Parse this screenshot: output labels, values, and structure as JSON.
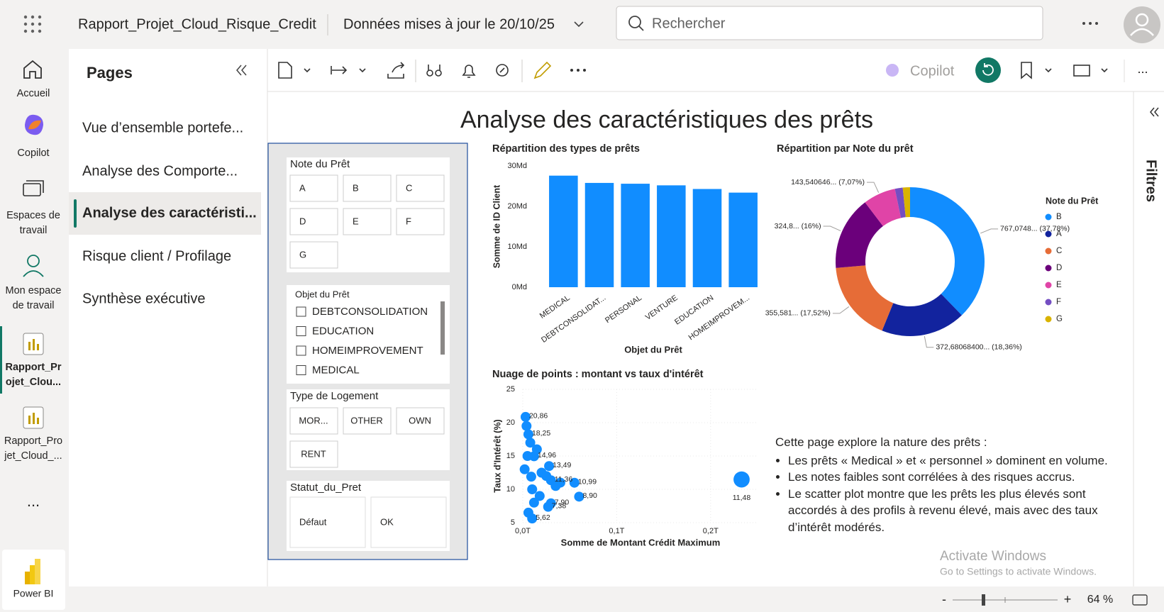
{
  "topbar": {
    "report_name": "Rapport_Projet_Cloud_Risque_Credit",
    "updated": "Données mises à jour le 20/10/25",
    "search": "Rechercher"
  },
  "nav": {
    "items": [
      [
        "Accueil"
      ],
      [
        "Copilot"
      ],
      [
        "Espaces de",
        "travail"
      ],
      [
        "Mon espace",
        "de travail"
      ],
      [
        "Rapport_Pr",
        "ojet_Clou..."
      ],
      [
        "Rapport_Pro",
        "jet_Cloud_..."
      ]
    ],
    "more": "...",
    "app": "Power BI"
  },
  "pages": {
    "title": "Pages",
    "items": [
      "Vue d’ensemble portefe...",
      "Analyse des Comporte...",
      "Analyse des caractéristi...",
      "Risque client / Profilage",
      "Synthèse exécutive"
    ],
    "active": 2
  },
  "toolbar": {
    "copilot": "Copilot",
    "more": "..."
  },
  "filters": "Filtres",
  "report": {
    "title": "Analyse des caractéristiques des prêts",
    "slicers": [
      {
        "title": "Note du Prêt",
        "options": [
          "A",
          "B",
          "C",
          "D",
          "E",
          "F",
          "G"
        ]
      },
      {
        "title": "Objet du Prêt",
        "options": [
          "DEBTCONSOLIDATION",
          "EDUCATION",
          "HOMEIMPROVEMENT",
          "MEDICAL"
        ]
      },
      {
        "title": "Type de Logement",
        "options": [
          "MOR...",
          "OTHER",
          "OWN",
          "RENT"
        ]
      },
      {
        "title": "Statut_du_Pret",
        "options": [
          "Défaut",
          "OK"
        ]
      }
    ],
    "bar_chart": {
      "type": "bar",
      "title": "Répartition des types de prêts",
      "y_label": "Somme de ID Client",
      "x_label": "Objet du Prêt",
      "categories": [
        "MEDICAL",
        "DEBTCONSOLIDAT...",
        "PERSONAL",
        "VENTURE",
        "EDUCATION",
        "HOMEIMPROVEM..."
      ],
      "values": [
        27.6,
        25.8,
        25.6,
        25.2,
        24.3,
        23.4
      ],
      "color": "#118dff",
      "ylim": [
        0,
        30
      ],
      "yticks": [
        {
          "value": 0,
          "label": "0Md"
        },
        {
          "value": 10,
          "label": "10Md"
        },
        {
          "value": 20,
          "label": "20Md"
        },
        {
          "value": 30,
          "label": "30Md"
        }
      ]
    },
    "donut": {
      "type": "pie",
      "title": "Répartition par Note du prêt",
      "legend_title": "Note du Prêt",
      "categories": [
        "B",
        "A",
        "C",
        "D",
        "E",
        "F",
        "G"
      ],
      "values": [
        37.78,
        18.36,
        17.52,
        16,
        7.07,
        1.7,
        1.57
      ],
      "value_labels": [
        "767,0748... (37,78%)",
        "372,68068400... (18,36%)",
        "355,581... (17,52%)",
        "324,8... (16%)",
        "143,540646... (7,07%)",
        null,
        null
      ],
      "colors": [
        "#118dff",
        "#12239e",
        "#e66c37",
        "#6b007b",
        "#e044a7",
        "#744ec2",
        "#d9b300"
      ]
    },
    "scatter": {
      "type": "scatter",
      "title": "Nuage de points : montant vs taux d'intérêt",
      "x_label": "Somme de Montant Crédit Maximum",
      "y_label": "Taux d'Intérêt (%)",
      "color": "#118dff",
      "grid": true,
      "x": [
        0.003,
        0.006,
        0.012,
        0.028,
        0.03,
        0.06,
        0.055,
        0.03,
        0.01,
        0.027,
        0.233,
        0.004,
        0.008,
        0.015,
        0.02,
        0.005,
        0.01,
        0.018,
        0.025,
        0.04,
        0.006,
        0.012,
        0.035,
        0.002,
        0.009
      ],
      "y": [
        20.86,
        18.25,
        14.96,
        13.49,
        11.36,
        8.9,
        10.99,
        7.9,
        5.62,
        7.38,
        11.48,
        19.5,
        17,
        16,
        12.5,
        15,
        10,
        9,
        12,
        11,
        6.5,
        8,
        10.5,
        13,
        11.9
      ],
      "sizes": [
        1,
        1,
        1,
        1,
        1,
        1,
        1,
        1,
        1,
        1,
        3,
        1,
        1,
        1,
        1,
        1,
        1,
        1,
        1,
        1,
        1,
        1,
        1,
        1,
        1
      ],
      "value_labels": [
        "20,86",
        "18,25",
        "14,96",
        "13,49",
        "11,36",
        "8,90",
        "10,99",
        "7,90",
        "5,62",
        "7,38",
        "11,48",
        null,
        null,
        null,
        null,
        null,
        null,
        null,
        null,
        null,
        null,
        null,
        null,
        null,
        null
      ],
      "xlim": [
        0,
        0.25
      ],
      "xticks": [
        {
          "value": 0,
          "label": "0,0T"
        },
        {
          "value": 0.1,
          "label": "0,1T"
        },
        {
          "value": 0.2,
          "label": "0,2T"
        }
      ],
      "ylim": [
        5,
        25
      ],
      "yticks": [
        5,
        10,
        15,
        20,
        25
      ]
    },
    "text_box": {
      "intro": "Cette page explore la nature des prêts :",
      "bullets": [
        "Les prêts « Medical » et « personnel » dominent en volume.",
        "Les notes faibles sont corrélées à des risques accrus.",
        "Le scatter plot montre que les prêts les plus élevés sont accordés à des profils à revenu élevé, mais avec des taux d’intérêt modérés."
      ]
    }
  },
  "watermark": {
    "title": "Activate Windows",
    "subtitle": "Go to Settings to activate Windows."
  },
  "footer": {
    "minus": "-",
    "plus": "+",
    "zoom": "64 %"
  }
}
